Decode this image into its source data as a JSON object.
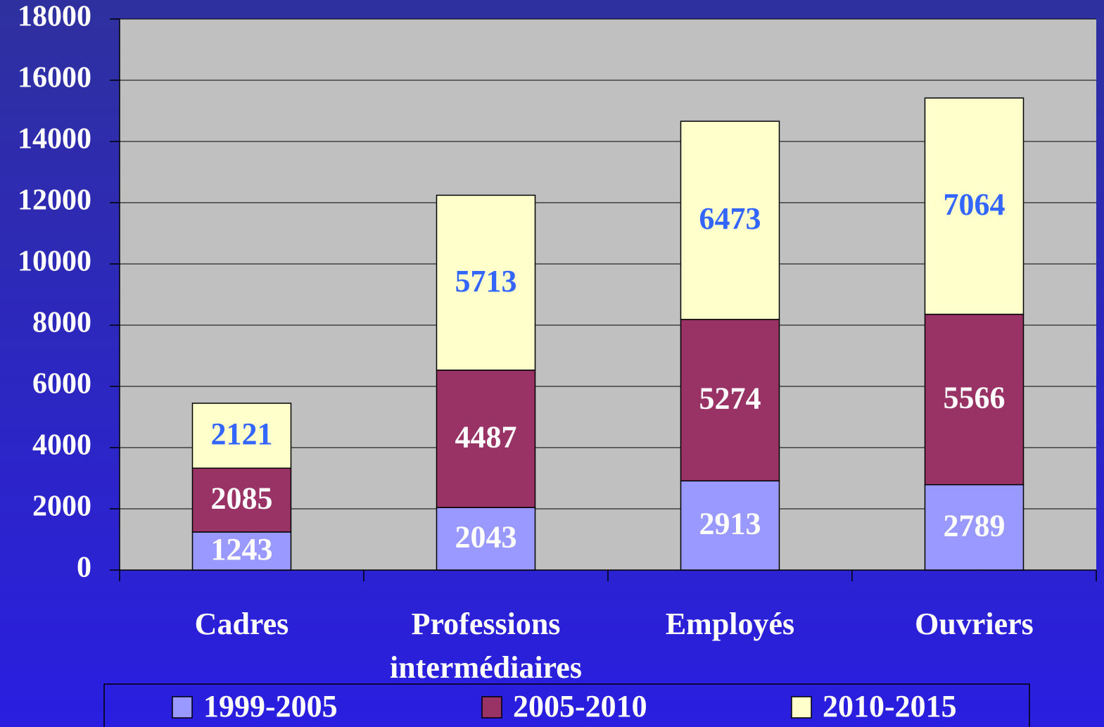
{
  "chart_data": {
    "type": "stacked_bar",
    "categories": [
      "Cadres",
      "Professions intermédiaires",
      "Employés",
      "Ouvriers"
    ],
    "series": [
      {
        "name": "1999-2005",
        "color": "#9999ff",
        "label_color": "#ffffff",
        "values": [
          1243,
          2043,
          2913,
          2789
        ]
      },
      {
        "name": "2005-2010",
        "color": "#993366",
        "label_color": "#ffffff",
        "values": [
          2085,
          4487,
          5274,
          5566
        ]
      },
      {
        "name": "2010-2015",
        "color": "#ffffcc",
        "label_color": "#3366ff",
        "values": [
          2121,
          5713,
          6473,
          7064
        ]
      }
    ],
    "ylim": [
      0,
      18000
    ],
    "yticks": [
      0,
      2000,
      4000,
      6000,
      8000,
      10000,
      12000,
      14000,
      16000,
      18000
    ],
    "grid": true,
    "legend": "bottom"
  }
}
